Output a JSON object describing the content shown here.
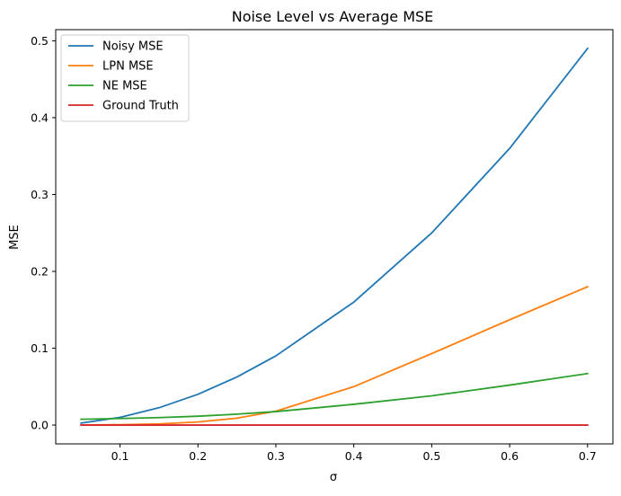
{
  "chart_data": {
    "type": "line",
    "title": "Noise Level vs Average MSE",
    "xlabel": "σ",
    "ylabel": "MSE",
    "xlim": [
      0.0175,
      0.7325
    ],
    "ylim": [
      -0.0245,
      0.5145
    ],
    "xticks": [
      0.1,
      0.2,
      0.3,
      0.4,
      0.5,
      0.6,
      0.7
    ],
    "xtick_labels": [
      "0.1",
      "0.2",
      "0.3",
      "0.4",
      "0.5",
      "0.6",
      "0.7"
    ],
    "yticks": [
      0.0,
      0.1,
      0.2,
      0.3,
      0.4,
      0.5
    ],
    "ytick_labels": [
      "0.0",
      "0.1",
      "0.2",
      "0.3",
      "0.4",
      "0.5"
    ],
    "grid": false,
    "legend_position": "top-left",
    "x": [
      0.05,
      0.1,
      0.15,
      0.2,
      0.25,
      0.3,
      0.4,
      0.5,
      0.6,
      0.7
    ],
    "series": [
      {
        "name": "Noisy MSE",
        "color": "#1f77b4",
        "values": [
          0.0025,
          0.01,
          0.0225,
          0.04,
          0.0625,
          0.09,
          0.16,
          0.25,
          0.36,
          0.49
        ]
      },
      {
        "name": "LPN MSE",
        "color": "#ff7f0e",
        "values": [
          0.0,
          0.0005,
          0.0015,
          0.004,
          0.009,
          0.018,
          0.05,
          0.093,
          0.137,
          0.18
        ]
      },
      {
        "name": "NE MSE",
        "color": "#2ca02c",
        "values": [
          0.0075,
          0.0085,
          0.0097,
          0.0115,
          0.0142,
          0.0175,
          0.027,
          0.038,
          0.052,
          0.067
        ]
      },
      {
        "name": "Ground Truth",
        "color": "#d62728",
        "values": [
          0.0,
          0.0,
          0.0,
          0.0,
          0.0,
          0.0,
          0.0,
          0.0,
          0.0,
          0.0
        ]
      }
    ]
  }
}
